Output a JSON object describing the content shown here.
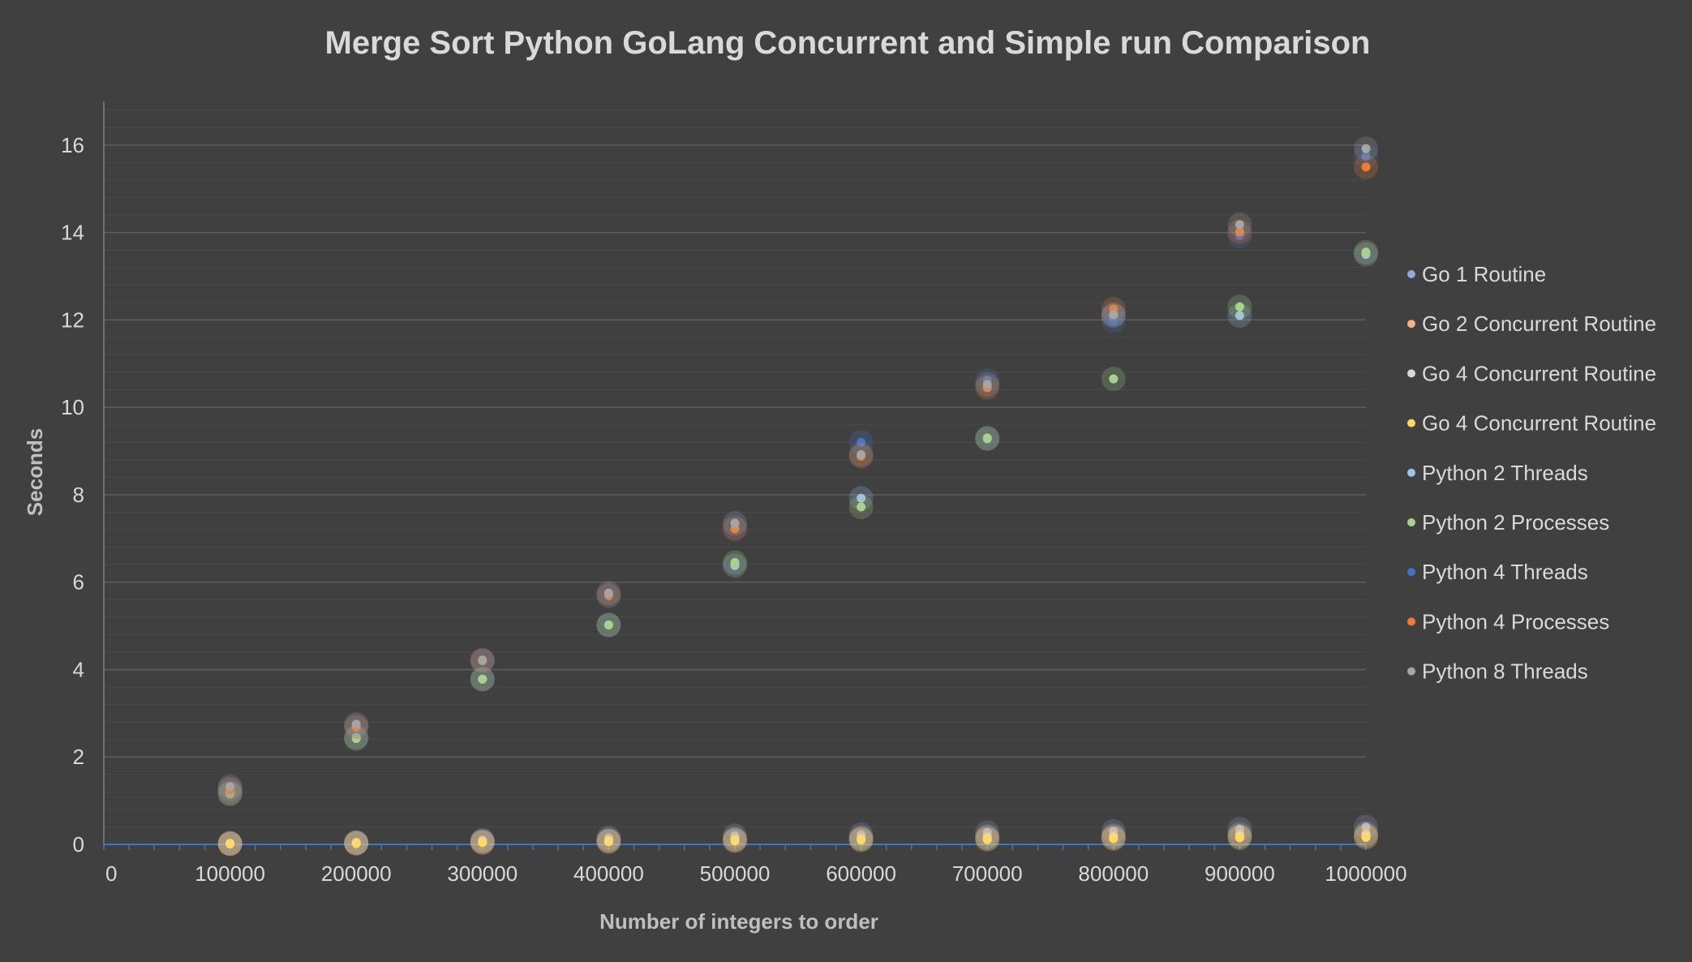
{
  "chart_data": {
    "type": "scatter",
    "title": "Merge Sort Python GoLang Concurrent and Simple run Comparison",
    "xlabel": "Number of integers to order",
    "ylabel": "Seconds",
    "xlim": [
      0,
      1000000
    ],
    "ylim": [
      0,
      17
    ],
    "x_ticks": [
      "0",
      "100000",
      "200000",
      "300000",
      "400000",
      "500000",
      "600000",
      "700000",
      "800000",
      "900000",
      "1000000"
    ],
    "y_ticks": [
      "0",
      "2",
      "4",
      "6",
      "8",
      "10",
      "12",
      "14",
      "16"
    ],
    "grid": "horizontal",
    "legend_position": "right",
    "x": [
      100000,
      200000,
      300000,
      400000,
      500000,
      600000,
      700000,
      800000,
      900000,
      1000000
    ],
    "series": [
      {
        "name": "Go 1 Routine",
        "color": "#8faadc",
        "values": [
          0.03,
          0.05,
          0.1,
          0.15,
          0.2,
          0.22,
          0.27,
          0.3,
          0.35,
          0.4
        ]
      },
      {
        "name": "Go 2 Concurrent Routine",
        "color": "#f4b183",
        "values": [
          0.02,
          0.04,
          0.07,
          0.1,
          0.13,
          0.15,
          0.18,
          0.2,
          0.23,
          0.25
        ]
      },
      {
        "name": "Go 4 Concurrent Routine",
        "color": "#d9d9d9",
        "values": [
          0.02,
          0.03,
          0.06,
          0.08,
          0.1,
          0.12,
          0.14,
          0.16,
          0.18,
          0.2
        ]
      },
      {
        "name": "Go 4 Concurrent Routine",
        "color": "#ffd966",
        "values": [
          0.01,
          0.02,
          0.04,
          0.06,
          0.08,
          0.1,
          0.11,
          0.13,
          0.15,
          0.16
        ]
      },
      {
        "name": "Python 2 Threads",
        "color": "#9dc3e6",
        "values": [
          1.18,
          2.45,
          3.78,
          5.02,
          6.38,
          7.92,
          9.28,
          12.1,
          12.1,
          13.5
        ]
      },
      {
        "name": "Python 2 Processes",
        "color": "#a9d18e",
        "values": [
          1.15,
          2.42,
          3.78,
          5.02,
          6.45,
          7.72,
          9.3,
          10.65,
          12.3,
          13.55
        ]
      },
      {
        "name": "Python 4 Threads",
        "color": "#4472c4",
        "values": [
          1.28,
          2.7,
          4.2,
          5.68,
          7.25,
          9.2,
          10.62,
          11.98,
          13.92,
          15.75
        ]
      },
      {
        "name": "Python 4 Processes",
        "color": "#ed7d31",
        "values": [
          1.25,
          2.68,
          4.2,
          5.7,
          7.22,
          8.88,
          10.45,
          12.25,
          14.02,
          15.5
        ]
      },
      {
        "name": "Python 8 Threads",
        "color": "#a5a5a5",
        "values": [
          1.32,
          2.75,
          4.22,
          5.75,
          7.35,
          8.92,
          10.52,
          12.12,
          14.18,
          15.92
        ]
      }
    ]
  }
}
